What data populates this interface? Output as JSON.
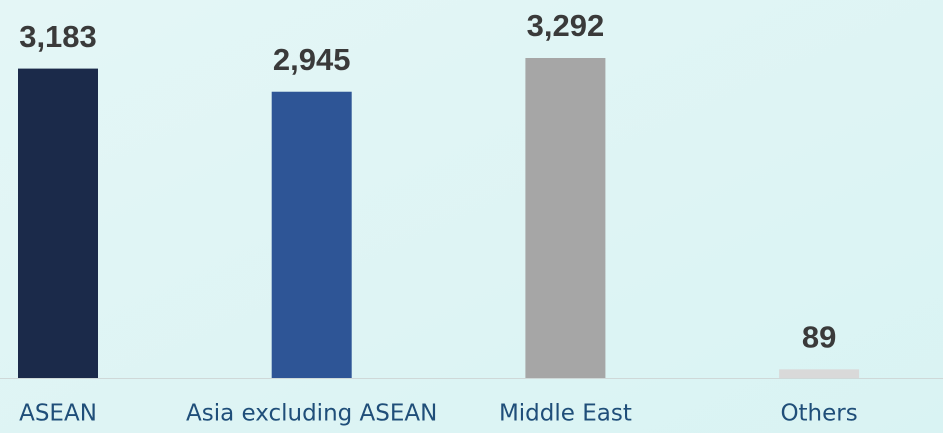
{
  "chart_data": {
    "type": "bar",
    "categories": [
      "ASEAN",
      "Asia excluding ASEAN",
      "Middle East",
      "Others"
    ],
    "values": [
      3183,
      2945,
      3292,
      89
    ],
    "value_labels": [
      "3,183",
      "2,945",
      "3,292",
      "89"
    ],
    "colors": [
      "#1b2a4a",
      "#2e5596",
      "#a6a6a6",
      "#d9d9d9"
    ]
  }
}
